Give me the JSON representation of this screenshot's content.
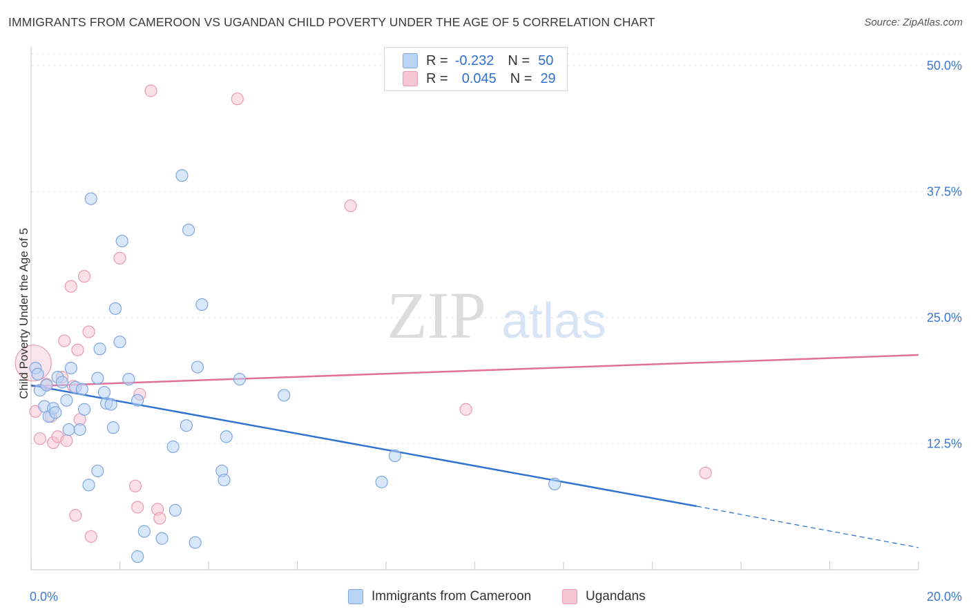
{
  "title": "IMMIGRANTS FROM CAMEROON VS UGANDAN CHILD POVERTY UNDER THE AGE OF 5 CORRELATION CHART",
  "source": "Source: ZipAtlas.com",
  "watermark": {
    "zip": "ZIP",
    "atlas": "atlas"
  },
  "legend": {
    "rows": [
      {
        "r_label": "R =",
        "r_value": "-0.232",
        "n_label": "N =",
        "n_value": "50"
      },
      {
        "r_label": "R =",
        "r_value": "0.045",
        "n_label": "N =",
        "n_value": "29"
      }
    ]
  },
  "bottom_legend": {
    "series1": "Immigrants from Cameroon",
    "series2": "Ugandans"
  },
  "colors": {
    "blue_fill": "#b9d3f5",
    "blue_stroke": "#7ea6e0",
    "blue_line": "#2f74d0",
    "pink_fill": "#f7c6d5",
    "pink_stroke": "#e79ab2",
    "pink_line": "#e0709a",
    "tick_label": "#3b78d0",
    "grid": "#e6e6e6"
  },
  "chart_data": {
    "type": "scatter",
    "title": "IMMIGRANTS FROM CAMEROON VS UGANDAN CHILD POVERTY UNDER THE AGE OF 5 CORRELATION CHART",
    "xlabel": "",
    "ylabel": "Child Poverty Under the Age of 5",
    "xlim": [
      0,
      20
    ],
    "ylim": [
      0,
      50
    ],
    "x_tick_labels": [
      "0.0%",
      "20.0%"
    ],
    "y_ticks": [
      12.5,
      25.0,
      37.5,
      50.0
    ],
    "y_tick_labels": [
      "12.5%",
      "25.0%",
      "37.5%",
      "50.0%"
    ],
    "grid": true,
    "legend_position": "top-center",
    "series": [
      {
        "name": "Immigrants from Cameroon",
        "color": "#b9d3f5",
        "r": -0.232,
        "n": 50,
        "trend": {
          "x0": 0.0,
          "y0": 18.3,
          "x1": 15.0,
          "y1": 6.3,
          "dash_to_x": 20.0,
          "dash_to_y": 2.2
        },
        "points": [
          [
            0.1,
            20.0
          ],
          [
            0.15,
            19.4
          ],
          [
            0.2,
            17.8
          ],
          [
            0.3,
            16.2
          ],
          [
            0.35,
            18.3
          ],
          [
            0.4,
            15.2
          ],
          [
            0.5,
            16.0
          ],
          [
            0.55,
            15.6
          ],
          [
            0.6,
            19.1
          ],
          [
            0.7,
            18.6
          ],
          [
            0.8,
            16.8
          ],
          [
            0.85,
            13.9
          ],
          [
            0.9,
            20.0
          ],
          [
            1.0,
            18.1
          ],
          [
            1.1,
            13.9
          ],
          [
            1.15,
            17.9
          ],
          [
            1.2,
            15.9
          ],
          [
            1.3,
            8.4
          ],
          [
            1.35,
            36.8
          ],
          [
            1.5,
            9.8
          ],
          [
            1.5,
            19.0
          ],
          [
            1.55,
            21.9
          ],
          [
            1.65,
            17.6
          ],
          [
            1.7,
            16.5
          ],
          [
            1.8,
            16.4
          ],
          [
            1.85,
            14.1
          ],
          [
            1.9,
            25.9
          ],
          [
            2.0,
            22.6
          ],
          [
            2.05,
            32.6
          ],
          [
            2.2,
            18.9
          ],
          [
            2.4,
            16.8
          ],
          [
            2.4,
            1.3
          ],
          [
            2.55,
            3.8
          ],
          [
            2.95,
            3.1
          ],
          [
            3.2,
            12.2
          ],
          [
            3.25,
            5.9
          ],
          [
            3.4,
            39.1
          ],
          [
            3.5,
            14.3
          ],
          [
            3.55,
            33.7
          ],
          [
            3.7,
            2.7
          ],
          [
            3.75,
            20.1
          ],
          [
            3.85,
            26.3
          ],
          [
            4.3,
            9.8
          ],
          [
            4.35,
            8.9
          ],
          [
            4.4,
            13.2
          ],
          [
            4.7,
            18.9
          ],
          [
            5.7,
            17.3
          ],
          [
            7.9,
            8.7
          ],
          [
            8.2,
            11.3
          ],
          [
            11.8,
            8.5
          ]
        ]
      },
      {
        "name": "Ugandans",
        "color": "#f7c6d5",
        "r": 0.045,
        "n": 29,
        "trend": {
          "x0": 0.0,
          "y0": 18.2,
          "x1": 20.0,
          "y1": 21.3
        },
        "points": [
          [
            0.05,
            20.5
          ],
          [
            0.1,
            15.7
          ],
          [
            0.2,
            13.0
          ],
          [
            0.35,
            18.4
          ],
          [
            0.45,
            15.2
          ],
          [
            0.5,
            12.6
          ],
          [
            0.6,
            13.2
          ],
          [
            0.7,
            19.1
          ],
          [
            0.75,
            22.7
          ],
          [
            0.8,
            12.8
          ],
          [
            0.9,
            28.1
          ],
          [
            0.95,
            18.2
          ],
          [
            1.0,
            5.4
          ],
          [
            1.05,
            21.8
          ],
          [
            1.1,
            14.9
          ],
          [
            1.2,
            29.1
          ],
          [
            1.3,
            23.6
          ],
          [
            1.35,
            3.3
          ],
          [
            2.0,
            30.9
          ],
          [
            2.35,
            8.3
          ],
          [
            2.4,
            6.2
          ],
          [
            2.45,
            17.4
          ],
          [
            2.7,
            47.5
          ],
          [
            2.85,
            6.0
          ],
          [
            2.9,
            5.1
          ],
          [
            4.65,
            46.7
          ],
          [
            7.2,
            36.1
          ],
          [
            9.8,
            15.9
          ],
          [
            15.2,
            9.6
          ]
        ]
      }
    ]
  }
}
